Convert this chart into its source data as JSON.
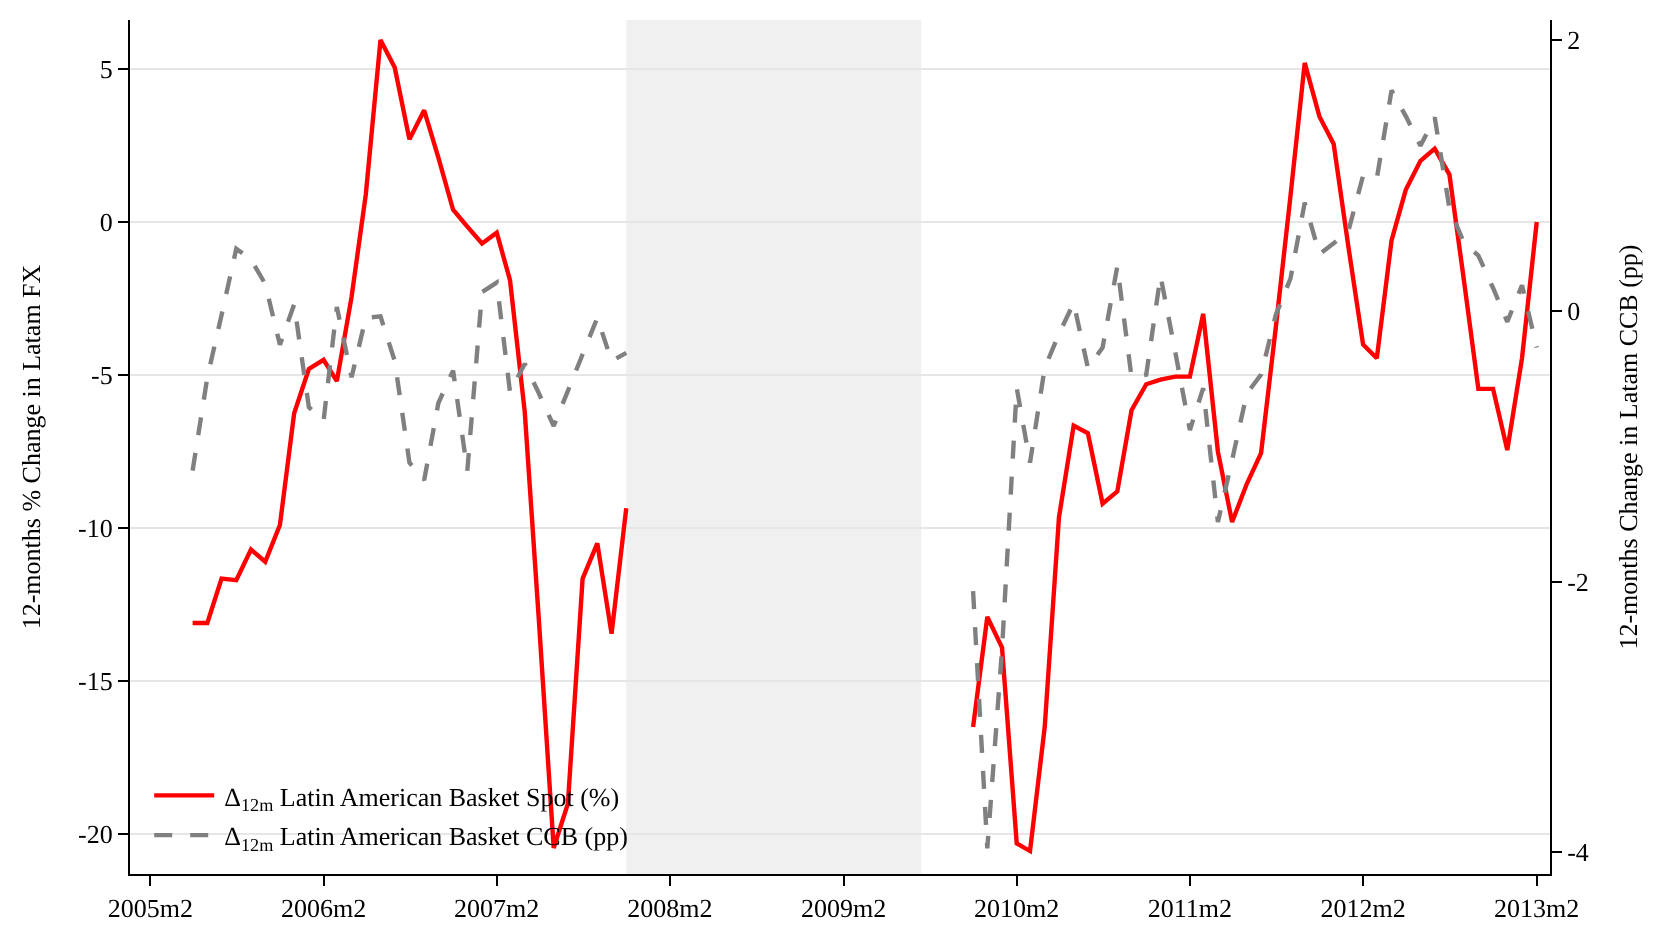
{
  "chart_data": {
    "type": "line",
    "ylabel": "12-months % Change in Latam FX",
    "y2label": "12-months Change in Latam CCB (pp)",
    "x": [
      "2005-05",
      "2005-06",
      "2005-07",
      "2005-08",
      "2005-09",
      "2005-10",
      "2005-11",
      "2005-12",
      "2006-01",
      "2006-02",
      "2006-03",
      "2006-04",
      "2006-05",
      "2006-06",
      "2006-07",
      "2006-08",
      "2006-09",
      "2006-10",
      "2006-11",
      "2006-12",
      "2007-01",
      "2007-02",
      "2007-03",
      "2007-04",
      "2007-05",
      "2007-06",
      "2007-07",
      "2007-08",
      "2007-09",
      "2007-10",
      "2007-11",
      "2008-11",
      "2009-11",
      "2009-12",
      "2010-01",
      "2010-02",
      "2010-03",
      "2010-04",
      "2010-05",
      "2010-06",
      "2010-07",
      "2010-08",
      "2010-09",
      "2010-10",
      "2010-11",
      "2010-12",
      "2011-01",
      "2011-02",
      "2011-03",
      "2011-04",
      "2011-05",
      "2011-06",
      "2011-07",
      "2011-08",
      "2011-09",
      "2011-10",
      "2011-11",
      "2011-12",
      "2012-01",
      "2012-02",
      "2012-03",
      "2012-04",
      "2012-05",
      "2012-06",
      "2012-07",
      "2012-08",
      "2012-09",
      "2012-10",
      "2012-11",
      "2012-12",
      "2013-01",
      "2013-02"
    ],
    "series": [
      {
        "name": "Δ$_{12m}$ Latin American Basket Spot (%)",
        "color": "#ff0000",
        "line_style": "solid",
        "values": [
          -13.1,
          -13.1,
          -11.65,
          -11.7,
          -10.7,
          -11.1,
          -9.9,
          -6.25,
          -4.8,
          -4.5,
          -5.2,
          -2.45,
          0.9,
          5.95,
          5.05,
          2.7,
          3.65,
          2.1,
          0.4,
          -0.15,
          -0.7,
          -0.35,
          -1.9,
          -6.2,
          -13.05,
          -20.45,
          -19.0,
          -11.65,
          -10.5,
          -13.45,
          -9.35,
          null,
          -16.5,
          -12.9,
          -13.9,
          -20.3,
          -20.55,
          -16.5,
          -9.65,
          -6.65,
          -6.9,
          -9.2,
          -8.8,
          -6.15,
          -5.3,
          -5.15,
          -5.05,
          -5.05,
          -3.0,
          -7.5,
          -9.8,
          -8.55,
          -7.55,
          -3.45,
          0.85,
          5.2,
          3.45,
          2.55,
          -0.8,
          -4.0,
          -4.45,
          -0.6,
          1.05,
          2.0,
          2.4,
          1.55,
          -1.95,
          -5.45,
          -5.45,
          -7.45,
          -4.45,
          0.0
        ]
      },
      {
        "name": "Δ$_{12m}$ Latin American Basket CCB (pp)",
        "color": "#808080",
        "line_style": "dashed",
        "axis": "y2",
        "values": [
          -1.18,
          -0.49,
          -0.03,
          0.46,
          0.38,
          0.2,
          -0.25,
          0.05,
          -0.71,
          -0.81,
          0.03,
          -0.49,
          -0.05,
          -0.04,
          -0.37,
          -1.12,
          -1.25,
          -0.68,
          -0.44,
          -1.18,
          0.14,
          0.21,
          -0.6,
          -0.39,
          -0.61,
          -0.85,
          -0.59,
          -0.32,
          -0.05,
          -0.37,
          -0.31,
          null,
          -2.07,
          -3.97,
          -2.5,
          -0.57,
          -1.12,
          -0.42,
          -0.17,
          0.06,
          -0.42,
          -0.27,
          0.33,
          -0.49,
          -0.47,
          0.26,
          -0.3,
          -0.88,
          -0.57,
          -1.56,
          -1.1,
          -0.61,
          -0.47,
          -0.03,
          0.24,
          0.8,
          0.42,
          0.5,
          0.59,
          1.0,
          0.98,
          1.63,
          1.44,
          1.22,
          1.43,
          0.76,
          0.5,
          0.41,
          0.17,
          -0.08,
          0.19,
          -0.27
        ]
      }
    ],
    "xlim": [
      "2004-12-20",
      "2013-03-01"
    ],
    "xticks": [
      {
        "value": "2005-02",
        "label": "2005m2"
      },
      {
        "value": "2006-02",
        "label": "2006m2"
      },
      {
        "value": "2007-02",
        "label": "2007m2"
      },
      {
        "value": "2008-02",
        "label": "2008m2"
      },
      {
        "value": "2009-02",
        "label": "2009m2"
      },
      {
        "value": "2010-02",
        "label": "2010m2"
      },
      {
        "value": "2011-02",
        "label": "2011m2"
      },
      {
        "value": "2012-02",
        "label": "2012m2"
      },
      {
        "value": "2013-02",
        "label": "2013m2"
      }
    ],
    "ylim": [
      -21.3,
      6.6
    ],
    "yticks": [
      -20,
      -15,
      -10,
      -5,
      0,
      5
    ],
    "y2lim": [
      -4.16,
      2.15
    ],
    "y2ticks": [
      -4,
      -2,
      0,
      2
    ],
    "bands": [
      {
        "axis": "x",
        "from": "2007-11-01",
        "to": "2009-07-15",
        "color": "#f0f0f0"
      }
    ],
    "grid": "y",
    "legend": "bottom left",
    "marker": "none"
  }
}
